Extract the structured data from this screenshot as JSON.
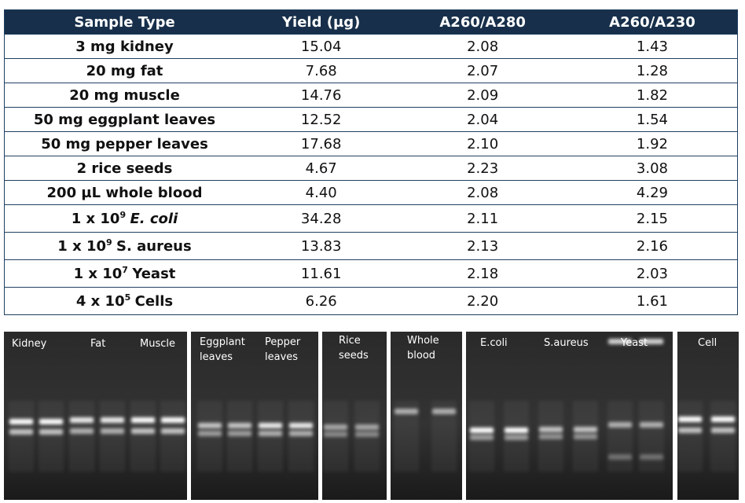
{
  "table": {
    "header": [
      "Sample Type",
      "Yield (µg)",
      "A260/A280",
      "A260/A230"
    ],
    "rows": [
      {
        "sample": "3 mg kidney",
        "yield": "15.04",
        "a280": "2.08",
        "a230": "1.43"
      },
      {
        "sample": "20 mg fat",
        "yield": "7.68",
        "a280": "2.07",
        "a230": "1.28"
      },
      {
        "sample": "20 mg muscle",
        "yield": "14.76",
        "a280": "2.09",
        "a230": "1.82"
      },
      {
        "sample": "50 mg eggplant leaves",
        "yield": "12.52",
        "a280": "2.04",
        "a230": "1.54"
      },
      {
        "sample": "50 mg pepper leaves",
        "yield": "17.68",
        "a280": "2.10",
        "a230": "1.92"
      },
      {
        "sample": "2 rice seeds",
        "yield": "4.67",
        "a280": "2.23",
        "a230": "3.08"
      },
      {
        "sample": "200 µL whole blood",
        "yield": "4.40",
        "a280": "2.08",
        "a230": "4.29"
      },
      {
        "sample": {
          "prefix": "1 x 10",
          "exponent": "9",
          "organism": "E. coli",
          "italic": true
        },
        "yield": "34.28",
        "a280": "2.11",
        "a230": "2.15"
      },
      {
        "sample": {
          "prefix": "1 x 10",
          "exponent": "9",
          "organism": "S. aureus"
        },
        "yield": "13.83",
        "a280": "2.13",
        "a230": "2.16"
      },
      {
        "sample": {
          "prefix": "1 x 10",
          "exponent": "7",
          "organism": "Yeast"
        },
        "yield": "11.61",
        "a280": "2.18",
        "a230": "2.03"
      },
      {
        "sample": {
          "prefix": "4 x 10",
          "exponent": "5",
          "organism": "Cells"
        },
        "yield": "6.26",
        "a280": "2.20",
        "a230": "1.61"
      }
    ]
  },
  "gel": {
    "labels": [
      [
        "Kidney"
      ],
      [
        "Fat"
      ],
      [
        "Muscle"
      ],
      [
        "Eggplant",
        "leaves"
      ],
      [
        "Pepper",
        "leaves"
      ],
      [
        "Rice",
        "seeds"
      ],
      [
        "Whole",
        "blood"
      ],
      [
        "E.coli"
      ],
      [
        "S.aureus"
      ],
      [
        "Yeast"
      ],
      [
        "Cell"
      ]
    ]
  }
}
